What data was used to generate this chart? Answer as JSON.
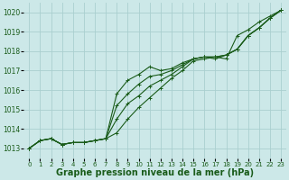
{
  "background_color": "#cce8e8",
  "grid_color": "#aacfcf",
  "line_color": "#1a5c1a",
  "marker_color": "#1a5c1a",
  "xlabel": "Graphe pression niveau de la mer (hPa)",
  "xlabel_fontsize": 7,
  "xlim": [
    -0.5,
    23.5
  ],
  "ylim": [
    1012.5,
    1020.5
  ],
  "yticks": [
    1013,
    1014,
    1015,
    1016,
    1017,
    1018,
    1019,
    1020
  ],
  "xticks": [
    0,
    1,
    2,
    3,
    4,
    5,
    6,
    7,
    8,
    9,
    10,
    11,
    12,
    13,
    14,
    15,
    16,
    17,
    18,
    19,
    20,
    21,
    22,
    23
  ],
  "series": [
    [
      1013.0,
      1013.4,
      1013.5,
      1013.2,
      1013.3,
      1013.3,
      1013.4,
      1013.5,
      1013.8,
      1014.5,
      1015.1,
      1015.6,
      1016.1,
      1016.6,
      1017.0,
      1017.5,
      1017.6,
      1017.7,
      1017.6,
      1018.8,
      1019.1,
      1019.5,
      1019.8,
      1020.1
    ],
    [
      1013.0,
      1013.4,
      1013.5,
      1013.2,
      1013.3,
      1013.3,
      1013.4,
      1013.5,
      1014.5,
      1015.3,
      1015.7,
      1016.2,
      1016.5,
      1016.8,
      1017.2,
      1017.6,
      1017.7,
      1017.6,
      1017.8,
      1018.1,
      1018.8,
      1019.2,
      1019.7,
      1020.1
    ],
    [
      1013.0,
      1013.4,
      1013.5,
      1013.2,
      1013.3,
      1013.3,
      1013.4,
      1013.5,
      1015.2,
      1015.8,
      1016.3,
      1016.7,
      1016.8,
      1017.0,
      1017.3,
      1017.6,
      1017.7,
      1017.7,
      1017.8,
      1018.1,
      1018.8,
      1019.2,
      1019.7,
      1020.1
    ],
    [
      1013.0,
      1013.4,
      1013.5,
      1013.2,
      1013.3,
      1013.3,
      1013.4,
      1013.5,
      1015.8,
      1016.5,
      1016.8,
      1017.2,
      1017.0,
      1017.1,
      1017.4,
      1017.6,
      1017.7,
      1017.7,
      1017.8,
      1018.1,
      1018.8,
      1019.2,
      1019.7,
      1020.1
    ]
  ]
}
